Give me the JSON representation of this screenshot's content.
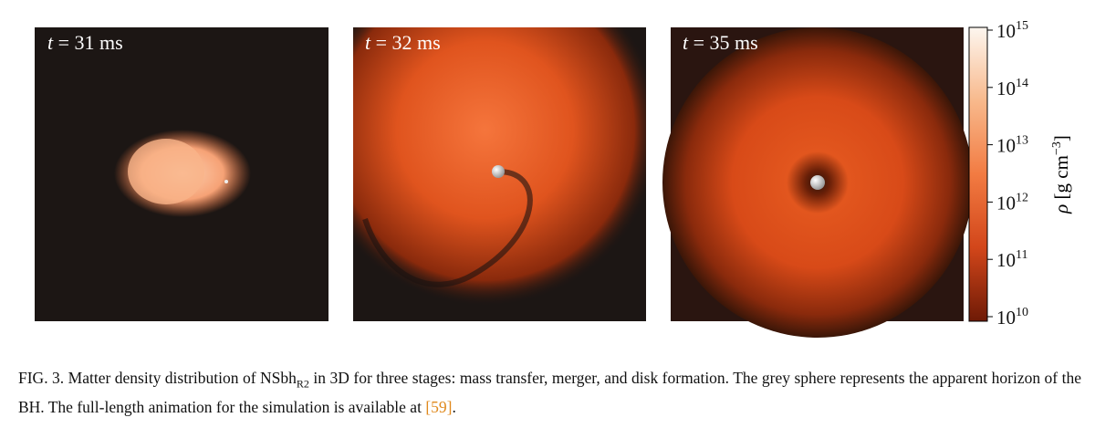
{
  "figure": {
    "panels": [
      {
        "var": "t",
        "text": "= 31 ms"
      },
      {
        "var": "t",
        "text": "= 32 ms"
      },
      {
        "var": "t",
        "text": "= 35 ms"
      }
    ],
    "colorbar": {
      "ticks": [
        {
          "base": "10",
          "exp": "15"
        },
        {
          "base": "10",
          "exp": "14"
        },
        {
          "base": "10",
          "exp": "13"
        },
        {
          "base": "10",
          "exp": "12"
        },
        {
          "base": "10",
          "exp": "11"
        },
        {
          "base": "10",
          "exp": "10"
        }
      ],
      "label": {
        "symbol": "ρ",
        "unit": "[g cm",
        "exp": "−3",
        "close": "]"
      }
    },
    "caption": {
      "lead": "FIG. 3. Matter density distribution of NSbh",
      "sub": "R2",
      "body": " in 3D for three stages: mass transfer, merger, and disk formation. The grey sphere represents the apparent horizon of the BH. The full-length animation for the simulation is available at ",
      "ref": "[59]",
      "end": "."
    }
  }
}
